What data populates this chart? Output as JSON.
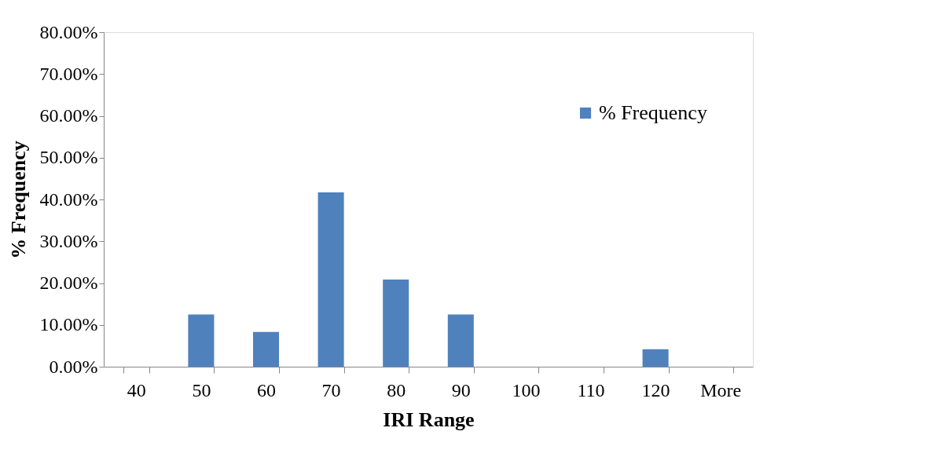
{
  "chart_data": {
    "type": "bar",
    "xlabel": "IRI Range",
    "ylabel": "% Frequency",
    "categories": [
      "40",
      "50",
      "60",
      "70",
      "80",
      "90",
      "100",
      "110",
      "120",
      "More"
    ],
    "series": [
      {
        "name": "% Frequency",
        "color": "#4f81bd",
        "values": [
          0,
          12.5,
          8.33,
          41.67,
          20.83,
          12.5,
          0,
          0,
          4.17,
          0
        ]
      }
    ],
    "ylim": [
      0,
      80
    ],
    "yticks": [
      {
        "value": 0,
        "label": "0.00%"
      },
      {
        "value": 10,
        "label": "10.00%"
      },
      {
        "value": 20,
        "label": "20.00%"
      },
      {
        "value": 30,
        "label": "30.00%"
      },
      {
        "value": 40,
        "label": "40.00%"
      },
      {
        "value": 50,
        "label": "50.00%"
      },
      {
        "value": 60,
        "label": "60.00%"
      },
      {
        "value": 70,
        "label": "70.00%"
      },
      {
        "value": 80,
        "label": "80.00%"
      }
    ],
    "grid": false,
    "legend": "top right"
  }
}
